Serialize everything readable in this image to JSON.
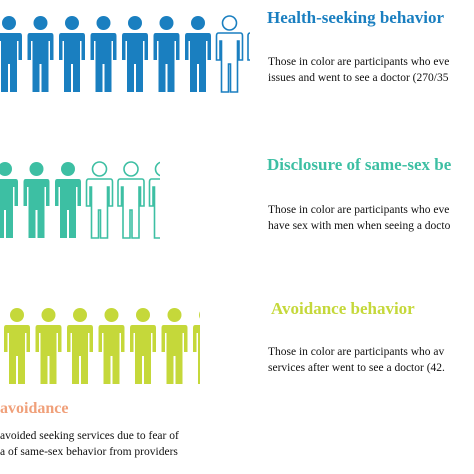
{
  "sections": [
    {
      "title": "Health-seeking behavior",
      "line1": "Those in color are participants who eve",
      "line2": "issues and went to see a doctor (270/35",
      "filled": 7,
      "total": 9,
      "color": "#1a7fc0"
    },
    {
      "title": "Disclosure of same-sex be",
      "line1": "Those in color are participants who eve",
      "line2": "have sex with men when seeing a docto",
      "filled": 3,
      "total": 6,
      "color": "#3dbfa3"
    },
    {
      "title": "Avoidance behavior",
      "line1": "Those in color are participants who av",
      "line2": "services after went to see a doctor (42.",
      "filled": 8,
      "total": 8,
      "color": "#c5d83a"
    }
  ],
  "avoidance_note": {
    "title": "avoidance",
    "title_color": "#f0a07a",
    "line1": " avoided seeking services due to fear of",
    "line2": "a of same-sex behavior from providers"
  }
}
